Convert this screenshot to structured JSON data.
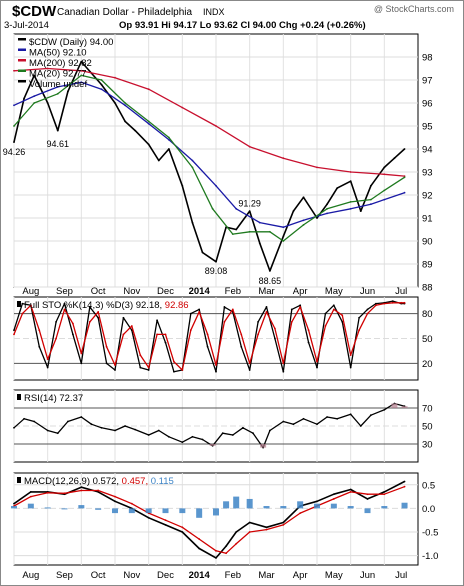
{
  "header": {
    "symbol": "$CDW",
    "name": "Canadian Dollar - Philadelphia",
    "exchange": "INDX",
    "date": "3-Jul-2014",
    "quote": "Op 93.91  Hi 94.17  Lo 93.62  Cl 94.00  Chg +0.24 (+0.26%)",
    "watermark": "@ StockCharts.com"
  },
  "x_axis": {
    "labels": [
      "Aug",
      "Sep",
      "Oct",
      "Nov",
      "Dec",
      "2014",
      "Feb",
      "Mar",
      "Apr",
      "May",
      "Jun",
      "Jul"
    ],
    "positions": [
      0.5,
      1.5,
      2.5,
      3.5,
      4.5,
      5.5,
      6.5,
      7.5,
      8.5,
      9.5,
      10.5,
      11.5
    ]
  },
  "colors": {
    "price": "#000000",
    "ma50": "#1a1aa6",
    "ma200": "#c8102e",
    "ma20": "#1f7a1f",
    "k": "#000000",
    "d": "#d10000",
    "rsi": "#000000",
    "macd": "#000000",
    "signal": "#d10000",
    "hist": "#3d84c6",
    "rsi_fill": "#b07a8a"
  },
  "chart_data": [
    {
      "type": "line",
      "title": "$CDW (Daily) 94.00",
      "ylim": [
        88,
        99
      ],
      "yticks": [
        88,
        89,
        90,
        91,
        92,
        93,
        94,
        95,
        96,
        97,
        98
      ],
      "legend": [
        {
          "key": "price",
          "label": "$CDW (Daily) 94.00"
        },
        {
          "key": "ma50",
          "label": "MA(50) 92.10"
        },
        {
          "key": "ma200",
          "label": "MA(200) 92.82"
        },
        {
          "key": "ma20",
          "label": "MA(20) 92.77"
        },
        {
          "key": "volume",
          "label": "Volume undef"
        }
      ],
      "series": [
        {
          "key": "price",
          "name": "$CDW (Daily) 94.00",
          "x": [
            0,
            0.3,
            0.6,
            1.0,
            1.3,
            1.6,
            2.0,
            2.3,
            2.6,
            3.0,
            3.3,
            3.6,
            4.0,
            4.3,
            4.6,
            5.0,
            5.3,
            5.6,
            6.0,
            6.3,
            6.6,
            7.0,
            7.3,
            7.6,
            8.0,
            8.3,
            8.6,
            9.0,
            9.3,
            9.6,
            10.0,
            10.3,
            10.6,
            11.0,
            11.3,
            11.6
          ],
          "y": [
            94.3,
            96.2,
            97.2,
            96.0,
            94.8,
            96.5,
            97.8,
            97.3,
            96.8,
            96.0,
            95.2,
            94.8,
            94.2,
            93.5,
            94.0,
            92.4,
            90.8,
            89.5,
            89.1,
            90.6,
            90.5,
            91.3,
            89.9,
            88.7,
            90.2,
            91.3,
            91.9,
            91.0,
            91.6,
            92.3,
            92.6,
            91.3,
            92.4,
            93.2,
            93.6,
            94.0
          ]
        },
        {
          "key": "ma50",
          "name": "MA(50) 92.10",
          "x": [
            0,
            0.6,
            1.3,
            2.0,
            2.6,
            3.3,
            4.0,
            4.6,
            5.3,
            6.0,
            6.6,
            7.3,
            8.0,
            8.6,
            9.3,
            10.0,
            10.6,
            11.0,
            11.6
          ],
          "y": [
            95.9,
            96.3,
            96.7,
            96.9,
            96.6,
            95.9,
            95.1,
            94.4,
            93.5,
            92.4,
            91.4,
            90.8,
            90.6,
            90.9,
            91.2,
            91.4,
            91.6,
            91.8,
            92.1
          ]
        },
        {
          "key": "ma200",
          "name": "MA(200) 92.82",
          "x": [
            0,
            1.0,
            2.0,
            3.0,
            4.0,
            5.0,
            6.0,
            7.0,
            8.0,
            9.0,
            10.0,
            11.0,
            11.6
          ],
          "y": [
            97.4,
            97.5,
            97.4,
            97.1,
            96.6,
            95.8,
            95.0,
            94.1,
            93.6,
            93.2,
            93.0,
            92.9,
            92.82
          ]
        },
        {
          "key": "ma20",
          "name": "MA(20) 92.77",
          "x": [
            0,
            0.6,
            1.3,
            2.0,
            2.6,
            3.3,
            4.0,
            4.6,
            5.3,
            5.9,
            6.5,
            7.0,
            7.6,
            8.0,
            8.6,
            9.3,
            10.0,
            10.6,
            11.0,
            11.6
          ],
          "y": [
            95.0,
            96.0,
            96.4,
            97.2,
            97.0,
            96.0,
            95.2,
            94.5,
            93.2,
            91.4,
            90.3,
            90.4,
            90.4,
            90.0,
            90.7,
            91.4,
            91.7,
            91.8,
            92.2,
            92.77
          ]
        }
      ],
      "annotations": [
        {
          "label": "94.26",
          "x": 0,
          "y": 94.26
        },
        {
          "label": "94.61",
          "x": 1.3,
          "y": 94.61
        },
        {
          "label": "89.08",
          "x": 6.0,
          "y": 89.08
        },
        {
          "label": "91.29",
          "x": 7.0,
          "y": 91.29
        },
        {
          "label": "88.65",
          "x": 7.6,
          "y": 88.65
        }
      ]
    },
    {
      "type": "line",
      "title": "Full STO %K(14,3) %D(3) 92.18, 92.86",
      "ylim": [
        0,
        100
      ],
      "yticks": [
        20,
        50,
        80
      ],
      "legend": [
        {
          "key": "k",
          "label": "Full STO %K(14,3) %D(3) 92.18,"
        },
        {
          "key": "d",
          "label": "92.86"
        }
      ],
      "series": [
        {
          "key": "k",
          "name": "%K",
          "x": [
            0,
            0.25,
            0.5,
            0.75,
            1.0,
            1.25,
            1.5,
            1.75,
            2.0,
            2.25,
            2.5,
            2.75,
            3.0,
            3.25,
            3.5,
            3.75,
            4.0,
            4.25,
            4.5,
            4.75,
            5.0,
            5.25,
            5.5,
            5.75,
            6.0,
            6.25,
            6.5,
            6.75,
            7.0,
            7.25,
            7.5,
            7.75,
            8.0,
            8.25,
            8.5,
            8.75,
            9.0,
            9.25,
            9.5,
            9.75,
            10.0,
            10.25,
            10.5,
            10.75,
            11.0,
            11.25,
            11.5,
            11.6
          ],
          "y": [
            60,
            92,
            90,
            40,
            15,
            70,
            92,
            55,
            20,
            88,
            75,
            20,
            12,
            75,
            60,
            15,
            12,
            72,
            45,
            10,
            12,
            80,
            85,
            40,
            10,
            88,
            82,
            40,
            12,
            70,
            88,
            50,
            10,
            85,
            90,
            45,
            15,
            80,
            90,
            70,
            15,
            75,
            85,
            92,
            93,
            95,
            92,
            92
          ]
        },
        {
          "key": "d",
          "name": "%D",
          "x": [
            0,
            0.25,
            0.5,
            0.75,
            1.0,
            1.25,
            1.5,
            1.75,
            2.0,
            2.25,
            2.5,
            2.75,
            3.0,
            3.25,
            3.5,
            3.75,
            4.0,
            4.25,
            4.5,
            4.75,
            5.0,
            5.25,
            5.5,
            5.75,
            6.0,
            6.25,
            6.5,
            6.75,
            7.0,
            7.25,
            7.5,
            7.75,
            8.0,
            8.25,
            8.5,
            8.75,
            9.0,
            9.25,
            9.5,
            9.75,
            10.0,
            10.25,
            10.5,
            10.75,
            11.0,
            11.25,
            11.5,
            11.6
          ],
          "y": [
            55,
            80,
            90,
            60,
            25,
            50,
            85,
            68,
            32,
            70,
            82,
            40,
            18,
            55,
            65,
            30,
            15,
            55,
            55,
            22,
            12,
            60,
            82,
            55,
            18,
            70,
            85,
            55,
            20,
            55,
            82,
            62,
            20,
            70,
            88,
            60,
            22,
            65,
            85,
            78,
            30,
            60,
            80,
            90,
            92,
            93,
            93,
            93
          ]
        }
      ]
    },
    {
      "type": "line",
      "title": "RSI(14) 72.37",
      "ylim": [
        10,
        90
      ],
      "yticks": [
        30,
        50,
        70
      ],
      "legend": [
        {
          "key": "rsi",
          "label": "RSI(14) 72.37"
        }
      ],
      "series": [
        {
          "key": "rsi",
          "name": "RSI(14) 72.37",
          "x": [
            0,
            0.3,
            0.6,
            1.0,
            1.3,
            1.6,
            2.0,
            2.3,
            2.6,
            3.0,
            3.3,
            3.6,
            4.0,
            4.3,
            4.6,
            5.0,
            5.3,
            5.6,
            5.9,
            6.2,
            6.5,
            6.8,
            7.1,
            7.4,
            7.6,
            8.0,
            8.3,
            8.6,
            9.0,
            9.3,
            9.6,
            10.0,
            10.3,
            10.6,
            11.0,
            11.3,
            11.6
          ],
          "y": [
            48,
            58,
            55,
            45,
            42,
            55,
            60,
            52,
            48,
            45,
            50,
            46,
            40,
            45,
            38,
            32,
            38,
            35,
            28,
            42,
            40,
            48,
            42,
            26,
            45,
            55,
            52,
            58,
            52,
            60,
            58,
            63,
            50,
            62,
            68,
            75,
            72
          ]
        }
      ]
    },
    {
      "type": "line",
      "title": "MACD(12,26,9) 0.572, 0.457, 0.115",
      "ylim": [
        -1.2,
        0.75
      ],
      "yticks": [
        -1.0,
        -0.5,
        0.0,
        0.5
      ],
      "legend": [
        {
          "key": "macd",
          "label": "MACD(12,26,9) 0.572,"
        },
        {
          "key": "signal",
          "label": "0.457,"
        },
        {
          "key": "hist",
          "label": "0.115"
        }
      ],
      "series": [
        {
          "key": "macd",
          "name": "MACD",
          "x": [
            0,
            0.5,
            1.0,
            1.5,
            2.0,
            2.5,
            3.0,
            3.5,
            4.0,
            4.5,
            5.0,
            5.5,
            6.0,
            6.3,
            6.6,
            7.0,
            7.5,
            8.0,
            8.5,
            9.0,
            9.5,
            10.0,
            10.5,
            11.0,
            11.6
          ],
          "y": [
            0.1,
            0.35,
            0.35,
            0.3,
            0.45,
            0.35,
            0.15,
            0.0,
            -0.2,
            -0.35,
            -0.5,
            -0.85,
            -1.05,
            -0.8,
            -0.5,
            -0.3,
            -0.4,
            -0.3,
            0.05,
            0.15,
            0.3,
            0.4,
            0.2,
            0.35,
            0.57
          ]
        },
        {
          "key": "signal",
          "name": "Signal",
          "x": [
            0,
            0.5,
            1.0,
            1.5,
            2.0,
            2.5,
            3.0,
            3.5,
            4.0,
            4.5,
            5.0,
            5.5,
            6.0,
            6.3,
            6.6,
            7.0,
            7.5,
            8.0,
            8.5,
            9.0,
            9.5,
            10.0,
            10.5,
            11.0,
            11.6
          ],
          "y": [
            0.05,
            0.25,
            0.33,
            0.32,
            0.38,
            0.38,
            0.25,
            0.1,
            -0.1,
            -0.25,
            -0.4,
            -0.65,
            -0.9,
            -0.95,
            -0.75,
            -0.5,
            -0.45,
            -0.35,
            -0.1,
            0.05,
            0.2,
            0.35,
            0.3,
            0.3,
            0.46
          ]
        },
        {
          "key": "hist",
          "name": "Histogram",
          "x": [
            0,
            0.5,
            1.0,
            1.5,
            2.0,
            2.5,
            3.0,
            3.5,
            4.0,
            4.5,
            5.0,
            5.5,
            6.0,
            6.3,
            6.6,
            7.0,
            7.5,
            8.0,
            8.5,
            9.0,
            9.5,
            10.0,
            10.5,
            11.0,
            11.6
          ],
          "y": [
            0.05,
            0.1,
            0.02,
            -0.02,
            0.07,
            -0.03,
            -0.1,
            -0.1,
            -0.1,
            -0.1,
            -0.1,
            -0.2,
            -0.15,
            0.15,
            0.25,
            0.2,
            0.05,
            0.05,
            0.15,
            0.1,
            0.1,
            0.05,
            -0.1,
            0.05,
            0.12
          ]
        }
      ]
    }
  ]
}
